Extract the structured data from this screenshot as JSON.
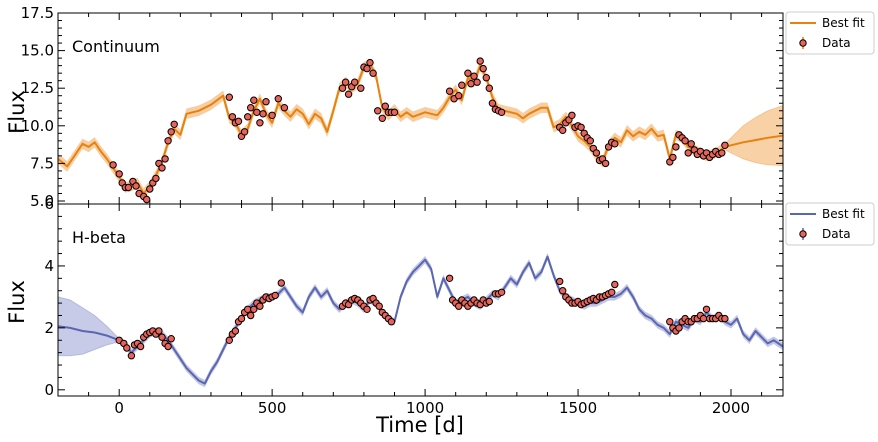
{
  "xlabel": "Time [d]",
  "chart_data": [
    {
      "type": "line",
      "panel_label": "Continuum",
      "ylabel": "Flux",
      "xlim": [
        -200,
        2170
      ],
      "ylim": [
        4.8,
        17.5
      ],
      "yticks": [
        5.0,
        7.5,
        10.0,
        12.5,
        15.0,
        17.5
      ],
      "ytick_labels": [
        "5.0",
        "7.5",
        "10.0",
        "12.5",
        "15.0",
        "17.5"
      ],
      "xticks": [
        0,
        500,
        1000,
        1500,
        2000
      ],
      "xtick_labels": [],
      "legend": {
        "position": "outside-right",
        "entries": [
          "Best fit",
          "Data"
        ]
      },
      "colors": {
        "line": "#e8820c",
        "band": "#f5c28a",
        "marker": "#e8645a"
      },
      "fit_x": [
        -200,
        -170,
        -140,
        -120,
        -100,
        -80,
        -60,
        -40,
        -20,
        0,
        20,
        40,
        60,
        80,
        100,
        120,
        140,
        160,
        180,
        200,
        220,
        260,
        300,
        340,
        360,
        380,
        400,
        420,
        440,
        460,
        480,
        500,
        520,
        540,
        560,
        580,
        600,
        620,
        640,
        660,
        680,
        700,
        720,
        740,
        760,
        780,
        800,
        820,
        840,
        860,
        880,
        900,
        920,
        940,
        960,
        1000,
        1040,
        1060,
        1080,
        1100,
        1120,
        1140,
        1160,
        1180,
        1200,
        1220,
        1240,
        1260,
        1280,
        1300,
        1320,
        1340,
        1380,
        1400,
        1420,
        1440,
        1460,
        1480,
        1500,
        1520,
        1540,
        1560,
        1580,
        1600,
        1620,
        1640,
        1660,
        1680,
        1700,
        1720,
        1740,
        1760,
        1780,
        1800,
        1820,
        1840,
        1860,
        1880,
        1900,
        1920,
        1940,
        1960,
        1980
      ],
      "fit_y": [
        7.8,
        7.3,
        8.2,
        8.8,
        8.6,
        8.9,
        8.3,
        7.8,
        7.2,
        6.6,
        5.9,
        6.0,
        6.2,
        5.5,
        6.0,
        6.7,
        7.6,
        8.9,
        9.8,
        9.4,
        10.8,
        11.0,
        11.4,
        12.0,
        10.5,
        10.2,
        9.4,
        9.8,
        11.0,
        11.8,
        10.8,
        10.2,
        11.5,
        11.0,
        10.6,
        11.1,
        10.8,
        10.1,
        10.8,
        10.5,
        9.6,
        11.0,
        12.5,
        12.9,
        12.5,
        12.8,
        13.9,
        14.1,
        13.3,
        11.2,
        10.7,
        11.1,
        10.6,
        10.9,
        10.6,
        10.9,
        10.7,
        11.2,
        11.9,
        12.4,
        11.7,
        13.2,
        12.9,
        14.0,
        13.2,
        11.9,
        11.1,
        11.0,
        10.9,
        10.8,
        10.5,
        10.8,
        11.2,
        11.2,
        9.9,
        10.1,
        10.6,
        10.0,
        9.3,
        9.0,
        8.6,
        8.0,
        7.6,
        8.7,
        9.2,
        8.9,
        9.7,
        9.3,
        9.6,
        9.4,
        9.8,
        9.3,
        9.4,
        7.8,
        9.4,
        9.2,
        8.6,
        8.4,
        8.2,
        8.0,
        8.1,
        8.3,
        8.6
      ],
      "forecast_x": [
        1980,
        2000,
        2040,
        2080,
        2120,
        2170
      ],
      "forecast_y": [
        8.6,
        8.7,
        8.9,
        9.05,
        9.2,
        9.35
      ],
      "forecast_band_halfwidth": [
        0.2,
        0.5,
        1.1,
        1.5,
        1.8,
        2.0
      ],
      "data_x": [
        -20,
        0,
        10,
        20,
        30,
        45,
        55,
        65,
        80,
        90,
        100,
        110,
        120,
        130,
        140,
        150,
        160,
        170,
        180,
        360,
        370,
        380,
        390,
        400,
        410,
        420,
        430,
        440,
        450,
        460,
        470,
        480,
        500,
        520,
        540,
        730,
        740,
        750,
        760,
        770,
        790,
        800,
        810,
        820,
        830,
        845,
        860,
        870,
        880,
        890,
        900,
        1080,
        1095,
        1110,
        1120,
        1140,
        1150,
        1160,
        1170,
        1180,
        1190,
        1200,
        1210,
        1220,
        1230,
        1240,
        1250,
        1440,
        1450,
        1460,
        1470,
        1480,
        1490,
        1500,
        1510,
        1520,
        1530,
        1540,
        1550,
        1560,
        1570,
        1580,
        1590,
        1600,
        1610,
        1620,
        1800,
        1810,
        1820,
        1830,
        1840,
        1850,
        1860,
        1870,
        1880,
        1890,
        1900,
        1910,
        1920,
        1930,
        1940,
        1950,
        1960,
        1970,
        1980
      ],
      "data_y": [
        7.4,
        6.8,
        6.2,
        5.9,
        5.9,
        6.3,
        6.0,
        5.5,
        5.3,
        5.1,
        5.8,
        6.2,
        6.5,
        7.5,
        7.2,
        7.8,
        9.0,
        9.6,
        10.1,
        11.9,
        10.6,
        10.2,
        10.3,
        9.3,
        9.6,
        10.6,
        11.2,
        11.7,
        10.9,
        10.2,
        10.8,
        11.6,
        10.7,
        11.8,
        11.2,
        12.5,
        12.9,
        12.1,
        12.6,
        12.9,
        12.5,
        13.9,
        13.8,
        14.2,
        13.5,
        11.0,
        10.5,
        11.3,
        10.9,
        10.9,
        10.9,
        12.3,
        11.8,
        12.0,
        12.7,
        13.5,
        12.8,
        13.3,
        12.9,
        14.3,
        13.8,
        13.2,
        12.5,
        11.5,
        11.1,
        11.0,
        10.9,
        9.9,
        9.7,
        10.2,
        10.4,
        10.7,
        9.9,
        10.0,
        9.9,
        9.5,
        9.2,
        9.0,
        8.5,
        8.2,
        7.7,
        7.8,
        7.5,
        8.6,
        8.9,
        8.8,
        7.6,
        7.9,
        8.6,
        9.4,
        9.2,
        9.0,
        8.2,
        8.8,
        8.4,
        8.1,
        8.3,
        8.0,
        8.2,
        7.9,
        8.1,
        8.3,
        8.1,
        8.2,
        8.7
      ]
    },
    {
      "type": "line",
      "panel_label": "H-beta",
      "ylabel": "Flux",
      "xlim": [
        -200,
        2170
      ],
      "ylim": [
        -0.2,
        6.0
      ],
      "yticks": [
        0,
        2,
        4,
        6
      ],
      "ytick_labels": [
        "0",
        "2",
        "4",
        "6"
      ],
      "xticks": [
        0,
        500,
        1000,
        1500,
        2000
      ],
      "xtick_labels": [
        "0",
        "500",
        "1000",
        "1500",
        "2000"
      ],
      "legend": {
        "position": "outside-right",
        "entries": [
          "Best fit",
          "Data"
        ]
      },
      "colors": {
        "line": "#5a67b0",
        "band": "#b4b9e0",
        "marker": "#e8645a"
      },
      "fit_x": [
        0,
        20,
        40,
        60,
        80,
        100,
        120,
        140,
        160,
        180,
        200,
        220,
        240,
        260,
        280,
        300,
        320,
        340,
        360,
        380,
        400,
        420,
        440,
        460,
        480,
        500,
        520,
        540,
        560,
        580,
        600,
        620,
        640,
        660,
        680,
        700,
        720,
        740,
        760,
        780,
        800,
        820,
        840,
        860,
        880,
        900,
        920,
        940,
        960,
        980,
        1000,
        1020,
        1040,
        1060,
        1080,
        1100,
        1120,
        1140,
        1160,
        1180,
        1200,
        1220,
        1240,
        1260,
        1280,
        1300,
        1320,
        1340,
        1360,
        1380,
        1400,
        1420,
        1440,
        1460,
        1480,
        1500,
        1520,
        1540,
        1560,
        1580,
        1600,
        1620,
        1640,
        1660,
        1680,
        1700,
        1720,
        1740,
        1760,
        1780,
        1800,
        1820,
        1840,
        1860,
        1880,
        1900,
        1920,
        1940,
        1960,
        1980,
        2000,
        2020,
        2040,
        2060,
        2080,
        2100,
        2120,
        2140,
        2170
      ],
      "fit_y": [
        1.6,
        1.45,
        1.2,
        1.4,
        1.6,
        1.8,
        1.9,
        1.8,
        1.6,
        1.3,
        1.0,
        0.7,
        0.5,
        0.3,
        0.2,
        0.6,
        0.9,
        1.3,
        1.7,
        2.0,
        2.3,
        2.6,
        2.8,
        2.9,
        3.0,
        3.0,
        3.1,
        3.3,
        3.0,
        2.7,
        2.5,
        3.0,
        3.3,
        3.0,
        3.2,
        2.8,
        2.6,
        2.8,
        2.9,
        2.8,
        2.6,
        2.9,
        2.8,
        2.5,
        2.3,
        2.2,
        3.0,
        3.5,
        3.8,
        4.0,
        4.2,
        3.9,
        3.0,
        3.6,
        3.2,
        2.8,
        2.9,
        3.0,
        2.8,
        2.7,
        2.9,
        3.1,
        3.0,
        3.3,
        3.6,
        3.4,
        3.8,
        4.1,
        3.6,
        3.8,
        4.3,
        3.7,
        3.2,
        3.0,
        2.9,
        2.8,
        2.7,
        2.8,
        2.8,
        2.9,
        3.0,
        3.0,
        3.1,
        3.3,
        3.0,
        2.6,
        2.4,
        2.3,
        2.1,
        2.0,
        1.8,
        2.2,
        2.1,
        2.0,
        2.3,
        2.2,
        2.5,
        2.3,
        2.4,
        2.2,
        2.1,
        2.3,
        1.8,
        1.6,
        1.9,
        1.7,
        1.5,
        1.6,
        1.4,
        1.6
      ],
      "backcast_x": [
        -200,
        -160,
        -120,
        -80,
        -40,
        0
      ],
      "backcast_y": [
        2.05,
        2.0,
        1.9,
        1.85,
        1.75,
        1.6
      ],
      "backcast_band_halfwidth": [
        0.95,
        0.9,
        0.75,
        0.55,
        0.3,
        0.05
      ],
      "data_x": [
        0,
        15,
        25,
        40,
        50,
        60,
        70,
        80,
        90,
        100,
        110,
        120,
        130,
        140,
        150,
        160,
        170,
        360,
        370,
        380,
        390,
        400,
        410,
        420,
        430,
        440,
        450,
        460,
        470,
        480,
        490,
        500,
        510,
        530,
        730,
        740,
        750,
        760,
        770,
        780,
        790,
        800,
        810,
        820,
        830,
        840,
        850,
        860,
        870,
        880,
        890,
        1080,
        1090,
        1100,
        1110,
        1120,
        1130,
        1140,
        1150,
        1160,
        1170,
        1180,
        1190,
        1200,
        1210,
        1230,
        1240,
        1250,
        1440,
        1450,
        1460,
        1470,
        1480,
        1490,
        1500,
        1510,
        1520,
        1530,
        1540,
        1550,
        1560,
        1570,
        1580,
        1590,
        1600,
        1610,
        1620,
        1800,
        1810,
        1820,
        1830,
        1840,
        1850,
        1860,
        1870,
        1880,
        1890,
        1900,
        1910,
        1920,
        1930,
        1940,
        1950,
        1960,
        1970,
        1980
      ],
      "data_y": [
        1.6,
        1.5,
        1.35,
        1.1,
        1.45,
        1.5,
        1.4,
        1.7,
        1.8,
        1.85,
        1.9,
        1.8,
        1.9,
        1.7,
        1.5,
        1.4,
        1.65,
        1.6,
        1.8,
        1.9,
        2.2,
        2.3,
        2.5,
        2.6,
        2.4,
        2.6,
        2.8,
        2.7,
        2.9,
        3.0,
        2.95,
        3.0,
        3.05,
        3.45,
        2.7,
        2.8,
        2.75,
        2.9,
        2.95,
        2.9,
        2.8,
        2.7,
        2.6,
        2.9,
        2.95,
        2.8,
        2.7,
        2.5,
        2.4,
        2.3,
        2.2,
        3.6,
        2.9,
        2.8,
        2.7,
        2.9,
        2.8,
        2.7,
        2.8,
        2.9,
        2.8,
        2.75,
        2.9,
        2.8,
        2.85,
        3.1,
        3.1,
        3.15,
        3.5,
        3.2,
        3.0,
        2.9,
        2.8,
        2.8,
        2.85,
        2.75,
        2.8,
        2.85,
        2.9,
        2.95,
        2.9,
        3.0,
        3.0,
        3.05,
        3.1,
        3.15,
        3.4,
        2.2,
        2.0,
        1.9,
        2.0,
        2.2,
        2.3,
        2.2,
        2.2,
        2.3,
        2.3,
        2.4,
        2.3,
        2.6,
        2.3,
        2.3,
        2.3,
        2.4,
        2.3,
        2.3
      ]
    }
  ]
}
